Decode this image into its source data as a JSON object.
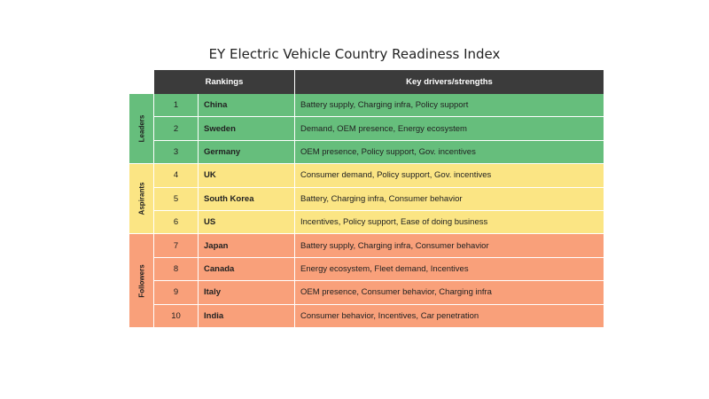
{
  "title": "EY Electric Vehicle Country Readiness Index",
  "colors": {
    "header": "#3b3b3b",
    "Leaders": "#66be7c",
    "Aspirants": "#fbe584",
    "Followers": "#f9a07a"
  },
  "chart_data": {
    "type": "table",
    "title": "EY Electric Vehicle Country Readiness Index",
    "columns": [
      "Rankings",
      "Key drivers/strengths"
    ],
    "groups": [
      {
        "name": "Leaders",
        "rows": [
          {
            "rank": "1",
            "country": "China",
            "drivers": "Battery supply, Charging infra, Policy support"
          },
          {
            "rank": "2",
            "country": "Sweden",
            "drivers": "Demand, OEM presence, Energy ecosystem"
          },
          {
            "rank": "3",
            "country": "Germany",
            "drivers": "OEM presence, Policy support, Gov. incentives"
          }
        ]
      },
      {
        "name": "Aspirants",
        "rows": [
          {
            "rank": "4",
            "country": "UK",
            "drivers": "Consumer demand, Policy support, Gov. incentives"
          },
          {
            "rank": "5",
            "country": "South Korea",
            "drivers": "Battery, Charging infra, Consumer behavior"
          },
          {
            "rank": "6",
            "country": "US",
            "drivers": "Incentives, Policy support, Ease of doing business"
          }
        ]
      },
      {
        "name": "Followers",
        "rows": [
          {
            "rank": "7",
            "country": "Japan",
            "drivers": "Battery supply, Charging infra, Consumer behavior"
          },
          {
            "rank": "8",
            "country": "Canada",
            "drivers": "Energy ecosystem, Fleet demand, Incentives"
          },
          {
            "rank": "9",
            "country": "Italy",
            "drivers": "OEM presence, Consumer behavior, Charging infra"
          },
          {
            "rank": "10",
            "country": "India",
            "drivers": "Consumer behavior, Incentives, Car penetration"
          }
        ]
      }
    ]
  }
}
